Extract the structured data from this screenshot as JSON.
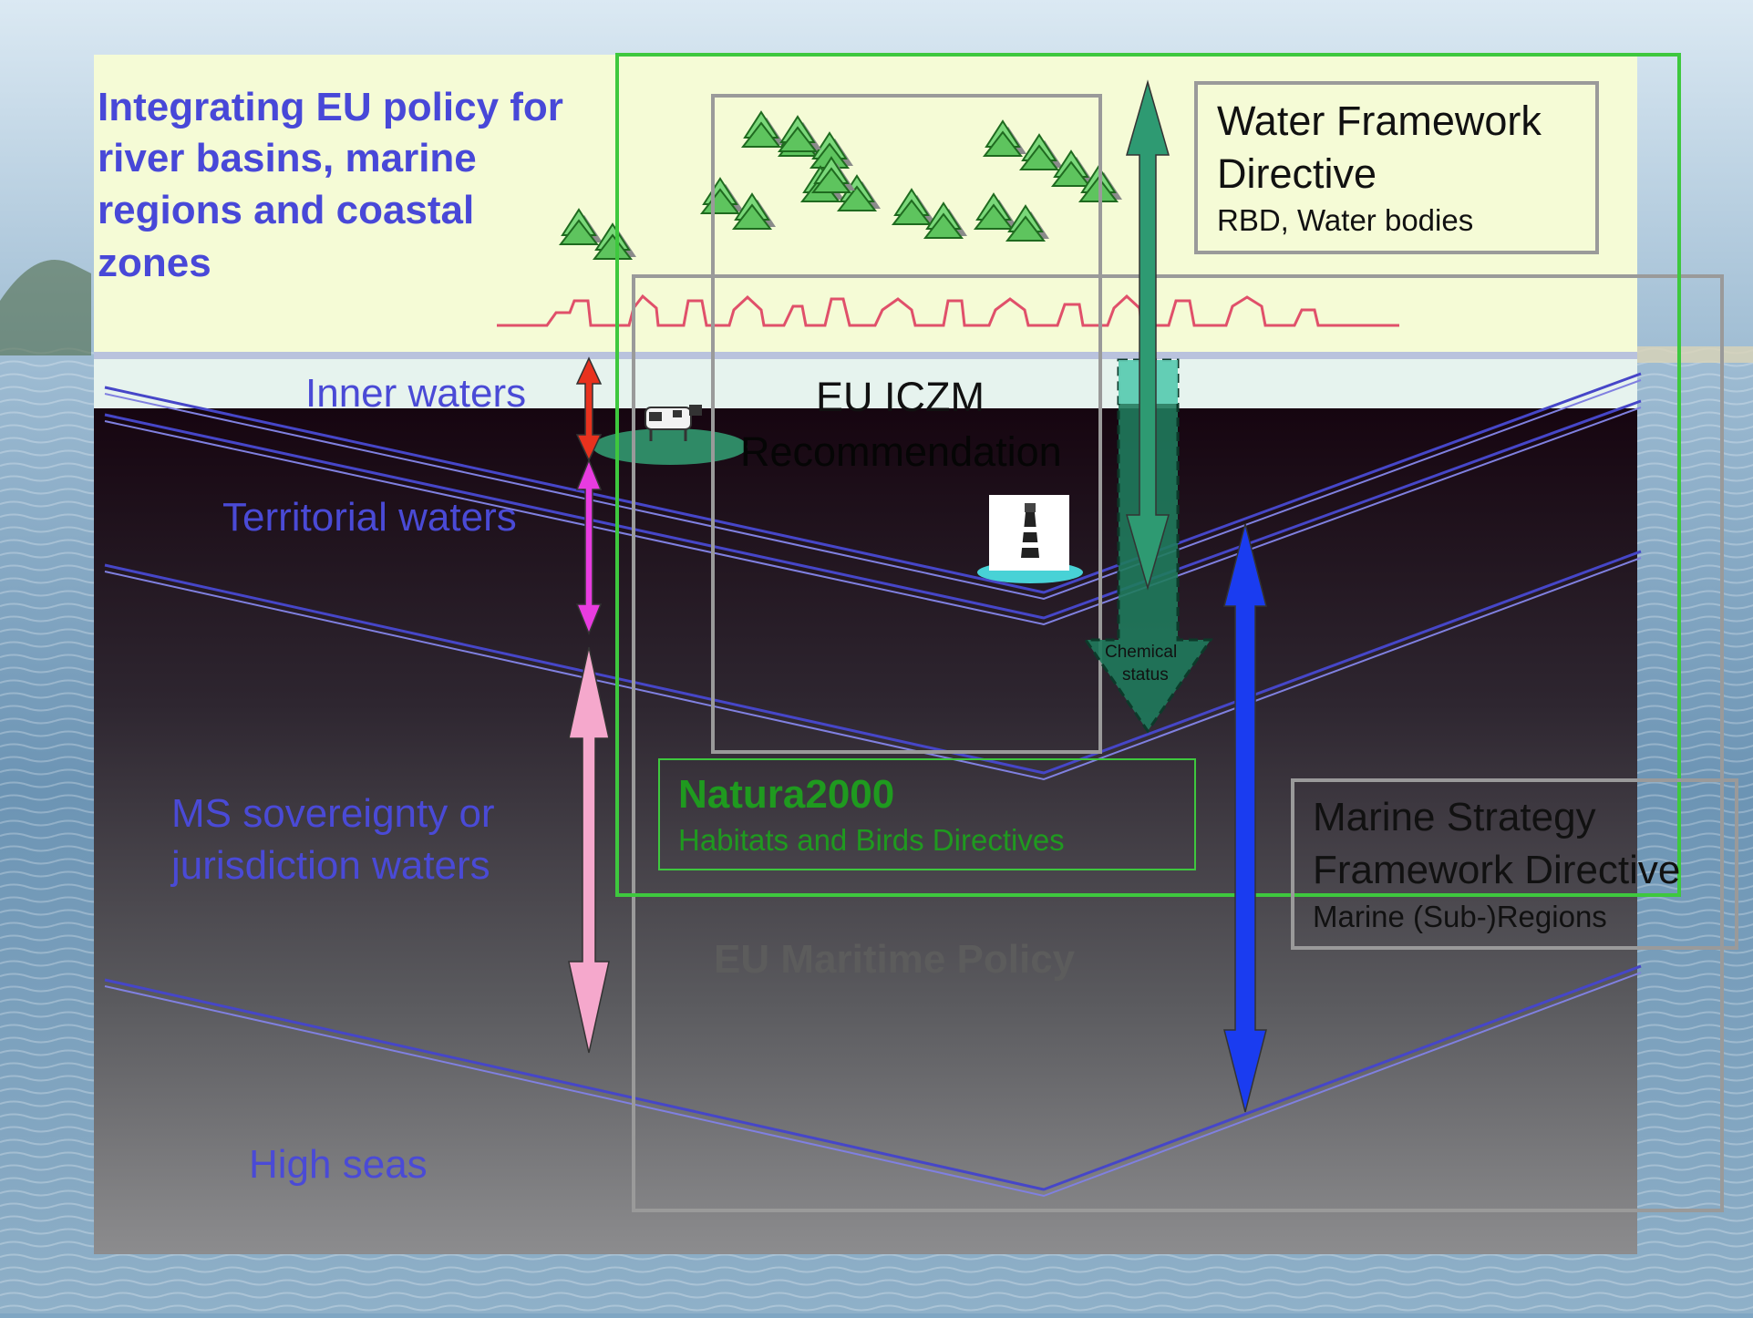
{
  "title_lines": [
    "Integrating EU policy for",
    "river basins, marine",
    "regions and coastal",
    "zones"
  ],
  "zones": {
    "inner": "Inner waters",
    "territorial": "Territorial waters",
    "ms_line1": "MS sovereignty or",
    "ms_line2": "jurisdiction waters",
    "high_seas": "High seas"
  },
  "wfd": {
    "line1": "Water Framework",
    "line2": "Directive",
    "sub": "RBD, Water bodies"
  },
  "iczm": {
    "line1": "EU ICZM",
    "line2": "Recommendation"
  },
  "chemical": {
    "line1": "Chemical",
    "line2": "status"
  },
  "natura": {
    "title": "Natura2000",
    "sub": "Habitats and Birds Directives"
  },
  "maritime": "EU Maritime Policy",
  "msfd": {
    "line1": "Marine Strategy",
    "line2": "Framework Directive",
    "sub": "Marine (Sub-)Regions"
  },
  "colors": {
    "title": "#4848d8",
    "zone_text": "#4a4ad6",
    "wfd_frame": "#3ec83e",
    "natura_text": "#1f9a1f",
    "grey_frame": "#9a9a9a",
    "seabed_line": "#4646c8",
    "arrow_inner": "#e8321e",
    "arrow_territorial": "#e83ce0",
    "arrow_ms": "#f5a8cc",
    "arrow_wfd": "#2e9a72",
    "arrow_msfd": "#1a3cf0",
    "settlement": "#e0506a"
  }
}
